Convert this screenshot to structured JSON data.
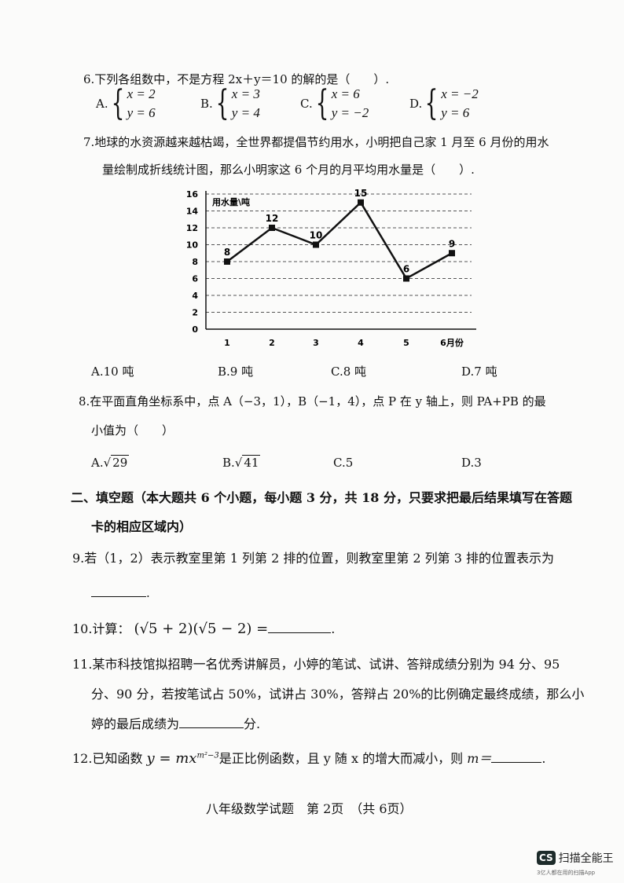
{
  "q6": {
    "stem": "6.下列各组数中，不是方程 2x＋y＝10 的解的是（　　）.",
    "options": [
      {
        "label": "A.",
        "x": "x = 2",
        "y": "y = 6"
      },
      {
        "label": "B.",
        "x": "x = 3",
        "y": "y = 4"
      },
      {
        "label": "C.",
        "x": "x = 6",
        "y": "y = −2"
      },
      {
        "label": "D.",
        "x": "x = −2",
        "y": "y = 6"
      }
    ]
  },
  "q7": {
    "stem1": "7.地球的水资源越来越枯竭，全世界都提倡节约用水，小明把自己家 1 月至 6 月份的用水",
    "stem2": "量绘制成折线统计图，那么小明家这 6 个月的月平均用水量是（　　）.",
    "options": [
      "A.10 吨",
      "B.9 吨",
      "C.8 吨",
      "D.7 吨"
    ]
  },
  "chart_data": {
    "type": "line",
    "ylabel": "用水量\\吨",
    "xlabel": "月份",
    "categories": [
      "1",
      "2",
      "3",
      "4",
      "5",
      "6月份"
    ],
    "values": [
      8,
      12,
      10,
      15,
      6,
      9
    ],
    "yticks": [
      "0",
      "2",
      "4",
      "6",
      "8",
      "10",
      "12",
      "14",
      "16"
    ],
    "ylim": [
      0,
      16
    ],
    "grid": "dashed horizontal",
    "data_labels": [
      "8",
      "12",
      "10",
      "15",
      "6",
      "9"
    ]
  },
  "q8": {
    "stem1": "8.在平面直角坐标系中，点 A（−3，1），B（−1，4），点 P 在 y 轴上，则 PA+PB 的最",
    "stem2": "小值为（　　）",
    "options": [
      {
        "label": "A.",
        "rad": "29"
      },
      {
        "label": "B.",
        "rad": "41"
      },
      {
        "label": "C.5"
      },
      {
        "label": "D.3"
      }
    ]
  },
  "section2": {
    "line1": "二、填空题（本大题共 6 个小题，每小题 3 分，共 18 分，只要求把最后结果填写在答题",
    "line2": "卡的相应区域内）"
  },
  "q9": {
    "stem": "9.若（1，2）表示教室里第 1 列第 2 排的位置，则教室里第 2 列第 3 排的位置表示为",
    "end": "."
  },
  "q10": {
    "pre": "10.计算：",
    "expr1": "(√5 + 2)(√5 − 2) =",
    "end": "."
  },
  "q11": {
    "line1": "11.某市科技馆拟招聘一名优秀讲解员，小婷的笔试、试讲、答辩成绩分别为 94 分、95",
    "line2": "分、90 分，若按笔试占 50%，试讲占 30%，答辩占 20%的比例确定最终成绩，那么小",
    "line3": "婷的最后成绩为",
    "unit": "分."
  },
  "q12": {
    "pre": "12.已知函数",
    "func": "y = mx",
    "exp": "m²−3",
    "mid": "是正比例函数，且 y 随 x 的增大而减小，则",
    "m": "m＝",
    "end": "."
  },
  "footer": "八年级数学试题　第 2页　（共 6页）",
  "logo": {
    "mark": "CS",
    "name": "扫描全能王",
    "tagline": "3亿人都在用的扫描App"
  }
}
